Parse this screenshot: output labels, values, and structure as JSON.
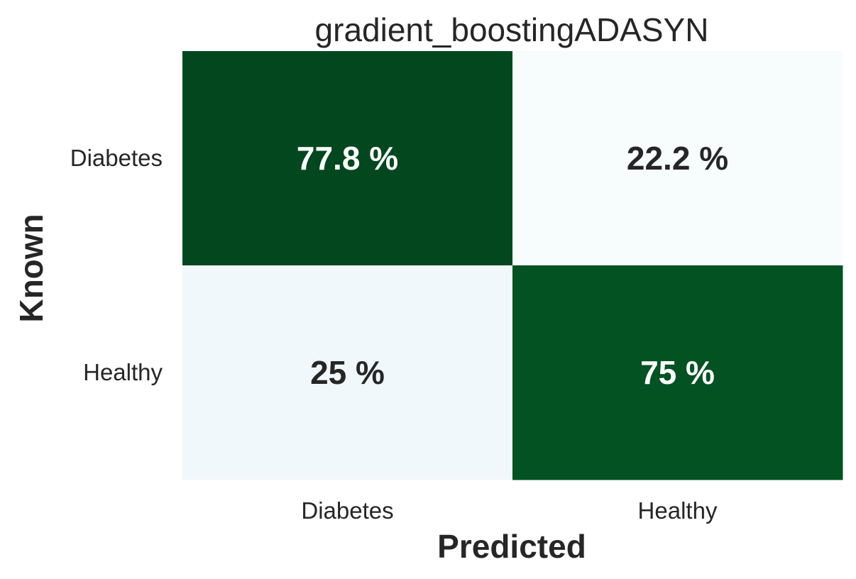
{
  "chart_data": {
    "type": "heatmap",
    "title": "gradient_boostingADASYN",
    "xlabel": "Predicted",
    "ylabel": "Known",
    "x_categories": [
      "Diabetes",
      "Healthy"
    ],
    "y_categories": [
      "Diabetes",
      "Healthy"
    ],
    "values": [
      [
        77.8,
        22.2
      ],
      [
        25,
        75
      ]
    ],
    "labels": [
      [
        "77.8 %",
        "22.2 %"
      ],
      [
        "25 %",
        "75 %"
      ]
    ],
    "colormap": "Greens",
    "color_range": [
      0,
      100
    ],
    "colorbar": false,
    "grid": false
  },
  "colors": {
    "high": "#00441b",
    "low": "#f7fcfd",
    "text_dark": "#262626",
    "text_light": "#ffffff"
  }
}
